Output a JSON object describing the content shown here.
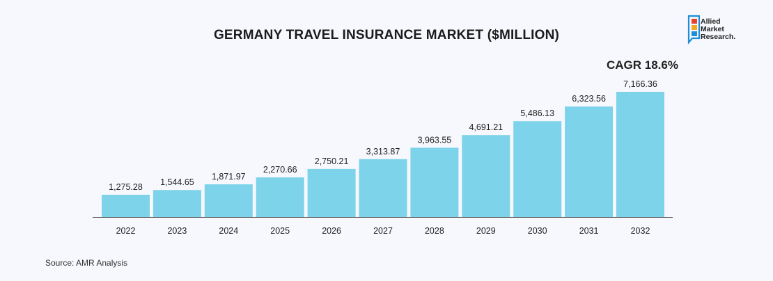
{
  "chart_data": {
    "type": "bar",
    "title": "GERMANY TRAVEL INSURANCE MARKET ($MILLION)",
    "categories": [
      "2022",
      "2023",
      "2024",
      "2025",
      "2026",
      "2027",
      "2028",
      "2029",
      "2030",
      "2031",
      "2032"
    ],
    "values": [
      1275.28,
      1544.65,
      1871.97,
      2270.66,
      2750.21,
      3313.87,
      3963.55,
      4691.21,
      5486.13,
      6323.56,
      7166.36
    ],
    "value_labels": [
      "1,275.28",
      "1,544.65",
      "1,871.97",
      "2,270.66",
      "2,750.21",
      "3,313.87",
      "3,963.55",
      "4,691.21",
      "5,486.13",
      "6,323.56",
      "7,166.36"
    ],
    "annotation": "CAGR 18.6%",
    "ylim": [
      0,
      7800
    ],
    "grid": false,
    "bar_color": "#7dd3ea"
  },
  "source": "Source: AMR Analysis",
  "logo": {
    "lines": [
      "Allied",
      "Market",
      "Research."
    ],
    "colors": [
      "#e8412c",
      "#f5a623",
      "#1e8fd6"
    ]
  }
}
